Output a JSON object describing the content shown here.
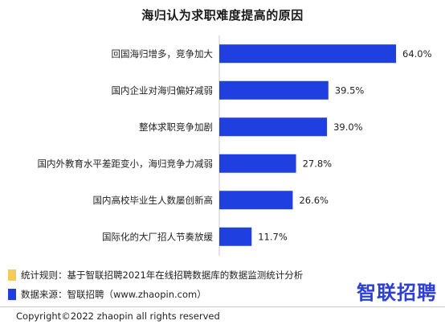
{
  "chart_data": {
    "type": "bar",
    "orientation": "horizontal",
    "title": "海归认为求职难度提高的原因",
    "categories": [
      "回国海归增多，竞争加大",
      "国内企业对海归偏好减弱",
      "整体求职竞争加剧",
      "国内外教育水平差距变小，海归竞争力减弱",
      "国内高校毕业生人数屡创新高",
      "国际化的大厂招人节奏放缓"
    ],
    "values": [
      64.0,
      39.5,
      39.0,
      27.8,
      26.6,
      11.7
    ],
    "value_labels": [
      "64.0%",
      "39.5%",
      "39.0%",
      "27.8%",
      "26.6%",
      "11.7%"
    ],
    "xlim": [
      0,
      64
    ],
    "grid": false,
    "bar_color": "#1f3fe0"
  },
  "notes": {
    "rule": "统计规则：基于智联招聘2021年在线招聘数据库的数据监测统计分析",
    "rule_color": "#f5c95a",
    "source": "数据来源：智联招聘（www.zhaopin.com）",
    "source_color": "#1f3fe0"
  },
  "footer": {
    "copyright": "Copyright©2022 zhaopin all rights reserved"
  },
  "brand": {
    "logo_text": "智联招聘"
  }
}
